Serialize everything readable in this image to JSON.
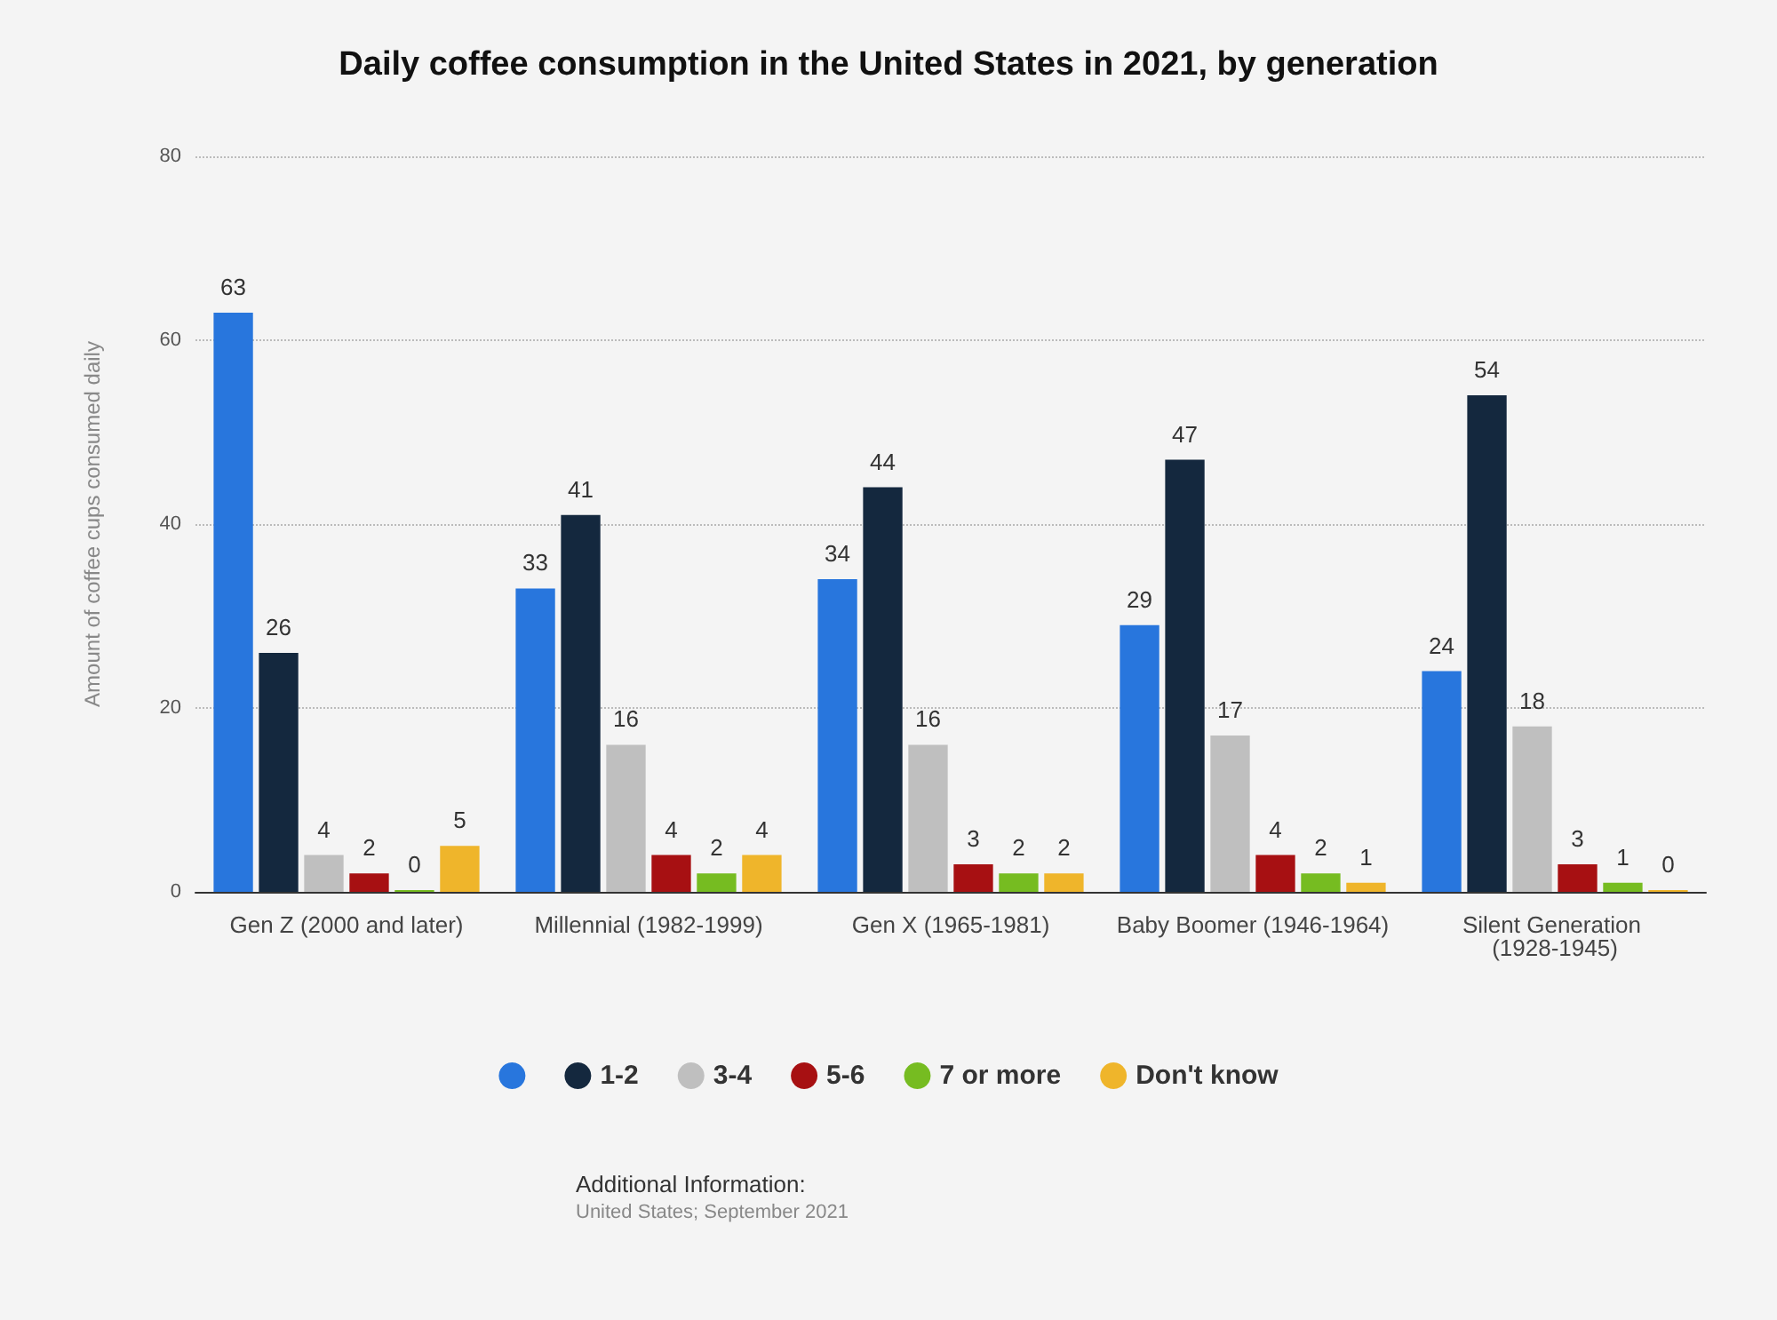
{
  "chart_data": {
    "type": "bar",
    "title": "Daily coffee consumption in the United States in 2021, by generation",
    "ylabel": "Amount of coffee cups consumed daily",
    "categories": [
      "Gen Z (2000 and later)",
      "Millennial (1982-1999)",
      "Gen X (1965-1981)",
      "Baby Boomer (1946-1964)",
      "Silent Generation (1928-1945)"
    ],
    "series": [
      {
        "color": "#2876dd",
        "values": [
          63,
          33,
          34,
          29,
          24
        ]
      },
      {
        "name": "1-2",
        "color": "#14283e",
        "values": [
          26,
          41,
          44,
          47,
          54
        ]
      },
      {
        "name": "3-4",
        "color": "#bfbfbf",
        "values": [
          4,
          16,
          16,
          17,
          18
        ]
      },
      {
        "name": "5-6",
        "color": "#a71012",
        "values": [
          2,
          4,
          3,
          4,
          3
        ]
      },
      {
        "name": "7 or more",
        "color": "#76bc21",
        "values": [
          0,
          2,
          2,
          2,
          1
        ]
      },
      {
        "name": "Don't know",
        "color": "#efb52b",
        "values": [
          5,
          4,
          2,
          1,
          0
        ]
      }
    ],
    "ylim": [
      0,
      80
    ],
    "yticks": [
      0,
      20,
      40,
      60,
      80
    ],
    "grid": "y",
    "legend": "bottom",
    "data_labels": true,
    "annotations": [
      "Additional Information:",
      "United States; September 2021"
    ]
  }
}
